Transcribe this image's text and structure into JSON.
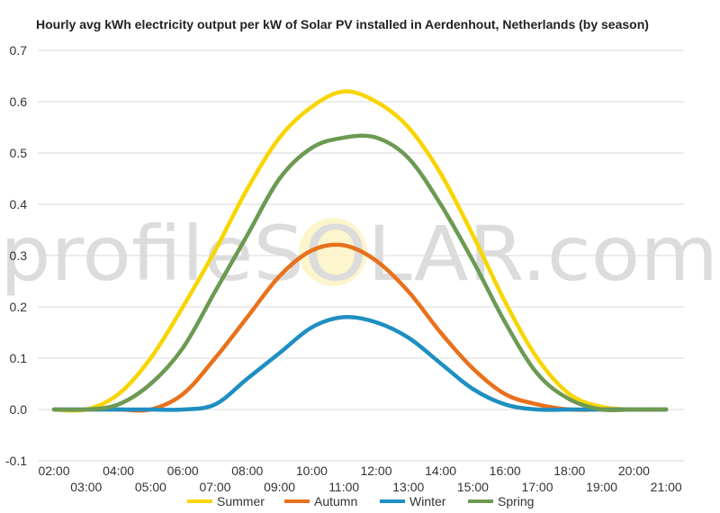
{
  "chart_data": {
    "type": "line",
    "title": "Hourly avg kWh electricity output per kW of Solar PV installed in Aerdenhout, Netherlands (by season)",
    "watermark": "profileSOLAR.com",
    "xlabel": "",
    "ylabel": "",
    "ylim": [
      -0.1,
      0.7
    ],
    "y_ticks": [
      "-0.1",
      "0.0",
      "0.1",
      "0.2",
      "0.3",
      "0.4",
      "0.5",
      "0.6",
      "0.7"
    ],
    "x_ticks_upper": [
      "02:00",
      "04:00",
      "06:00",
      "08:00",
      "10:00",
      "12:00",
      "14:00",
      "16:00",
      "18:00",
      "20:00"
    ],
    "x_ticks_lower": [
      "03:00",
      "05:00",
      "07:00",
      "09:00",
      "11:00",
      "13:00",
      "15:00",
      "17:00",
      "19:00",
      "21:00"
    ],
    "x": [
      2,
      3,
      4,
      5,
      6,
      7,
      8,
      9,
      10,
      11,
      12,
      13,
      14,
      15,
      16,
      17,
      18,
      19,
      20,
      21
    ],
    "grid": true,
    "legend_position": "bottom",
    "series": [
      {
        "name": "Summer",
        "color": "#f9d500",
        "values": [
          0.0,
          0.0,
          0.03,
          0.1,
          0.2,
          0.31,
          0.43,
          0.53,
          0.59,
          0.62,
          0.6,
          0.55,
          0.46,
          0.34,
          0.21,
          0.1,
          0.03,
          0.005,
          0.0,
          0.0
        ]
      },
      {
        "name": "Autumn",
        "color": "#e8711c",
        "values": [
          0.0,
          0.0,
          0.0,
          0.0,
          0.03,
          0.1,
          0.18,
          0.26,
          0.31,
          0.32,
          0.29,
          0.23,
          0.15,
          0.08,
          0.03,
          0.01,
          0.0,
          0.0,
          0.0,
          0.0
        ]
      },
      {
        "name": "Winter",
        "color": "#1f8fc2",
        "values": [
          0.0,
          0.0,
          0.0,
          0.0,
          0.0,
          0.01,
          0.06,
          0.11,
          0.16,
          0.18,
          0.17,
          0.14,
          0.09,
          0.04,
          0.01,
          0.0,
          0.0,
          0.0,
          0.0,
          0.0
        ]
      },
      {
        "name": "Spring",
        "color": "#6c9a52",
        "values": [
          0.0,
          0.0,
          0.01,
          0.05,
          0.12,
          0.23,
          0.34,
          0.45,
          0.51,
          0.53,
          0.53,
          0.49,
          0.4,
          0.29,
          0.17,
          0.07,
          0.02,
          0.0,
          0.0,
          0.0
        ]
      }
    ]
  }
}
